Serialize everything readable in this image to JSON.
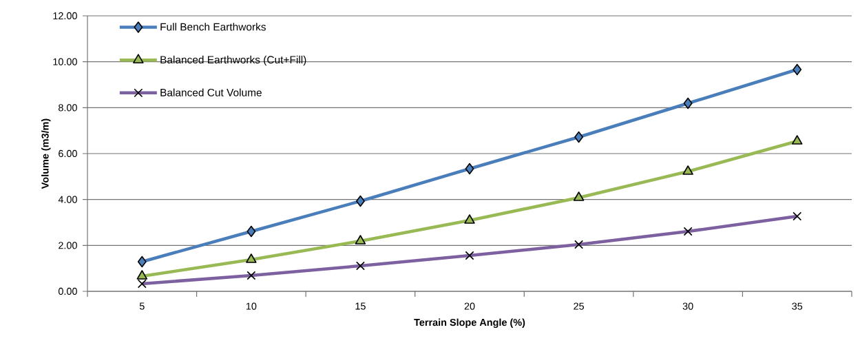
{
  "chart_data": {
    "type": "line",
    "xlabel": "Terrain Slope Angle (%)",
    "ylabel": "Volume (m3/m)",
    "categories": [
      "5",
      "10",
      "15",
      "20",
      "25",
      "30",
      "35"
    ],
    "series": [
      {
        "name": "Full Bench Earthworks",
        "color": "#4a7ebb",
        "marker": "diamond",
        "values": [
          1.29,
          2.61,
          3.93,
          5.34,
          6.72,
          8.19,
          9.66
        ]
      },
      {
        "name": "Balanced Earthworks (Cut+Fill)",
        "color": "#98b954",
        "marker": "triangle",
        "values": [
          0.66,
          1.38,
          2.19,
          3.09,
          4.08,
          5.22,
          6.54
        ]
      },
      {
        "name": "Balanced Cut Volume",
        "color": "#7d60a0",
        "marker": "cross",
        "values": [
          0.33,
          0.69,
          1.11,
          1.56,
          2.04,
          2.61,
          3.27
        ]
      }
    ],
    "ylim": [
      0,
      12
    ],
    "yticks": [
      {
        "value": 0,
        "label": "0.00"
      },
      {
        "value": 2,
        "label": "2.00"
      },
      {
        "value": 4,
        "label": "4.00"
      },
      {
        "value": 6,
        "label": "6.00"
      },
      {
        "value": 8,
        "label": "8.00"
      },
      {
        "value": 10,
        "label": "10.00"
      },
      {
        "value": 12,
        "label": "12.00"
      }
    ],
    "grid": "y",
    "legend": "top left",
    "line_style": "solid"
  }
}
